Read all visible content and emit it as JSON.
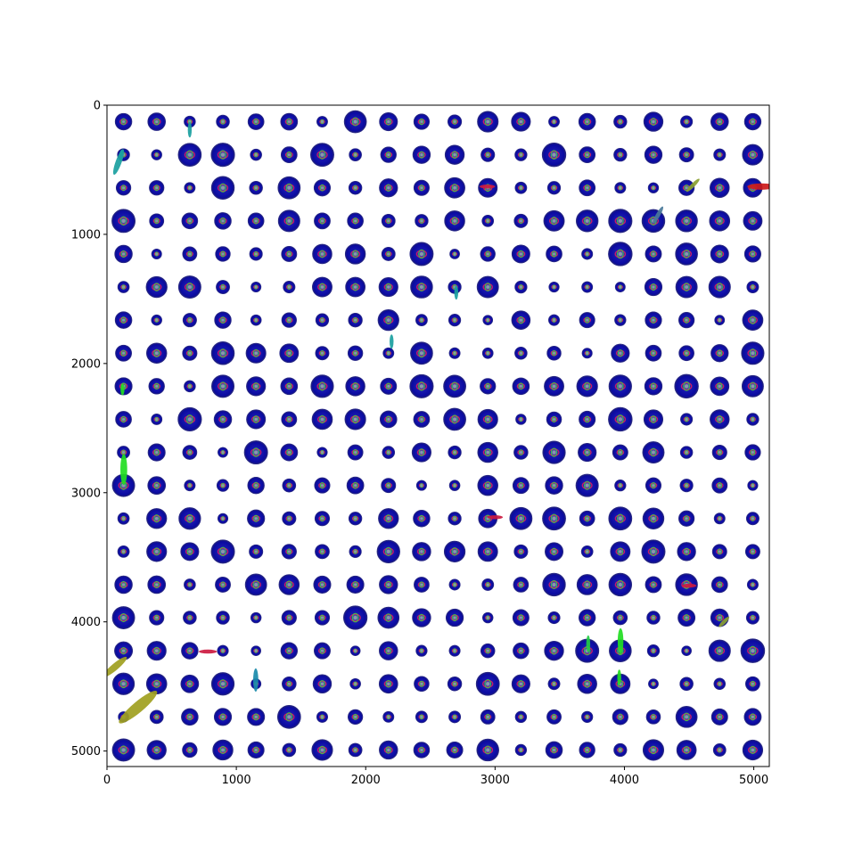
{
  "chart_data": {
    "type": "scatter",
    "title": "",
    "xlabel": "",
    "ylabel": "",
    "xlim": [
      0,
      5120
    ],
    "ylim": [
      5120,
      0
    ],
    "y_inverted": true,
    "grid": false,
    "legend": "none",
    "x_ticks": [
      "0",
      "1000",
      "2000",
      "3000",
      "4000",
      "5000"
    ],
    "y_ticks": [
      "0",
      "1000",
      "2000",
      "3000",
      "4000",
      "5000"
    ],
    "x_tick_values": [
      0,
      1000,
      2000,
      3000,
      4000,
      5000
    ],
    "y_tick_values": [
      0,
      1000,
      2000,
      3000,
      4000,
      5000
    ],
    "glyph_grid": {
      "x_start": 128,
      "x_step": 256,
      "columns": 20,
      "y_start": 128,
      "y_step": 256,
      "rows": 20,
      "glyph": "spherical-glyph",
      "body_color": "#0a0aa0",
      "rim_color": "#2a2a8a",
      "center_colors": [
        "#e81e5a",
        "#33ee33",
        "#8899aa"
      ]
    },
    "anisotropic_glyphs": [
      {
        "x": 90,
        "y": 440,
        "len": 210,
        "angle": -70,
        "color": "#1aa0a0"
      },
      {
        "x": 110,
        "y": 390,
        "len": 90,
        "angle": -85,
        "color": "#1aa0a0"
      },
      {
        "x": 640,
        "y": 190,
        "len": 120,
        "angle": 90,
        "color": "#1aa0a0"
      },
      {
        "x": 5060,
        "y": 630,
        "len": 220,
        "angle": 0,
        "color": "#cc1a1a"
      },
      {
        "x": 4260,
        "y": 850,
        "len": 150,
        "angle": -60,
        "color": "#4a7a9a"
      },
      {
        "x": 4530,
        "y": 620,
        "len": 140,
        "angle": -45,
        "color": "#8aa030"
      },
      {
        "x": 130,
        "y": 2820,
        "len": 240,
        "angle": 90,
        "color": "#22dd22"
      },
      {
        "x": 120,
        "y": 2200,
        "len": 90,
        "angle": 90,
        "color": "#22dd22"
      },
      {
        "x": 60,
        "y": 4350,
        "len": 240,
        "angle": -40,
        "color": "#a0a020"
      },
      {
        "x": 240,
        "y": 4660,
        "len": 380,
        "angle": -40,
        "color": "#a0a020"
      },
      {
        "x": 3970,
        "y": 4150,
        "len": 200,
        "angle": 90,
        "color": "#22dd22"
      },
      {
        "x": 3960,
        "y": 4430,
        "len": 120,
        "angle": 90,
        "color": "#22dd22"
      },
      {
        "x": 1150,
        "y": 4450,
        "len": 180,
        "angle": 90,
        "color": "#1a8aaa"
      },
      {
        "x": 2200,
        "y": 1830,
        "len": 110,
        "angle": 90,
        "color": "#1aa0a0"
      },
      {
        "x": 780,
        "y": 4230,
        "len": 140,
        "angle": 0,
        "color": "#cc1a40"
      },
      {
        "x": 2940,
        "y": 630,
        "len": 120,
        "angle": 0,
        "color": "#cc1a40"
      },
      {
        "x": 3000,
        "y": 3190,
        "len": 120,
        "angle": 0,
        "color": "#cc1a40"
      },
      {
        "x": 4500,
        "y": 3720,
        "len": 110,
        "angle": 0,
        "color": "#cc1a40"
      },
      {
        "x": 3720,
        "y": 4170,
        "len": 130,
        "angle": 90,
        "color": "#22cc44"
      },
      {
        "x": 2700,
        "y": 1450,
        "len": 110,
        "angle": 90,
        "color": "#1aa0a0"
      },
      {
        "x": 4770,
        "y": 4000,
        "len": 110,
        "angle": -45,
        "color": "#8aa030"
      }
    ]
  }
}
